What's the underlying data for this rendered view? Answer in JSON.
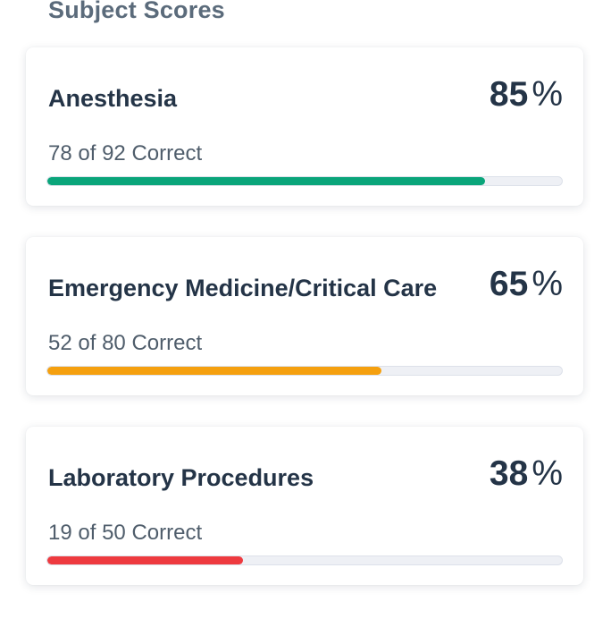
{
  "section": {
    "title": "Subject Scores"
  },
  "subjects": [
    {
      "name": "Anesthesia",
      "score": "85",
      "score_unit": "%",
      "correct": "78",
      "of_text": "of",
      "total": "92",
      "correct_label": "Correct",
      "progress_fraction": 0.85,
      "bar_color": "#0aa57a"
    },
    {
      "name": "Emergency Medicine/Critical Care",
      "score": "65",
      "score_unit": "%",
      "correct": "52",
      "of_text": "of",
      "total": "80",
      "correct_label": "Correct",
      "progress_fraction": 0.65,
      "bar_color": "#f5a00f"
    },
    {
      "name": "Laboratory Procedures",
      "score": "38",
      "score_unit": "%",
      "correct": "19",
      "of_text": "of",
      "total": "50",
      "correct_label": "Correct",
      "progress_fraction": 0.38,
      "bar_color": "#ee3a3f"
    }
  ]
}
